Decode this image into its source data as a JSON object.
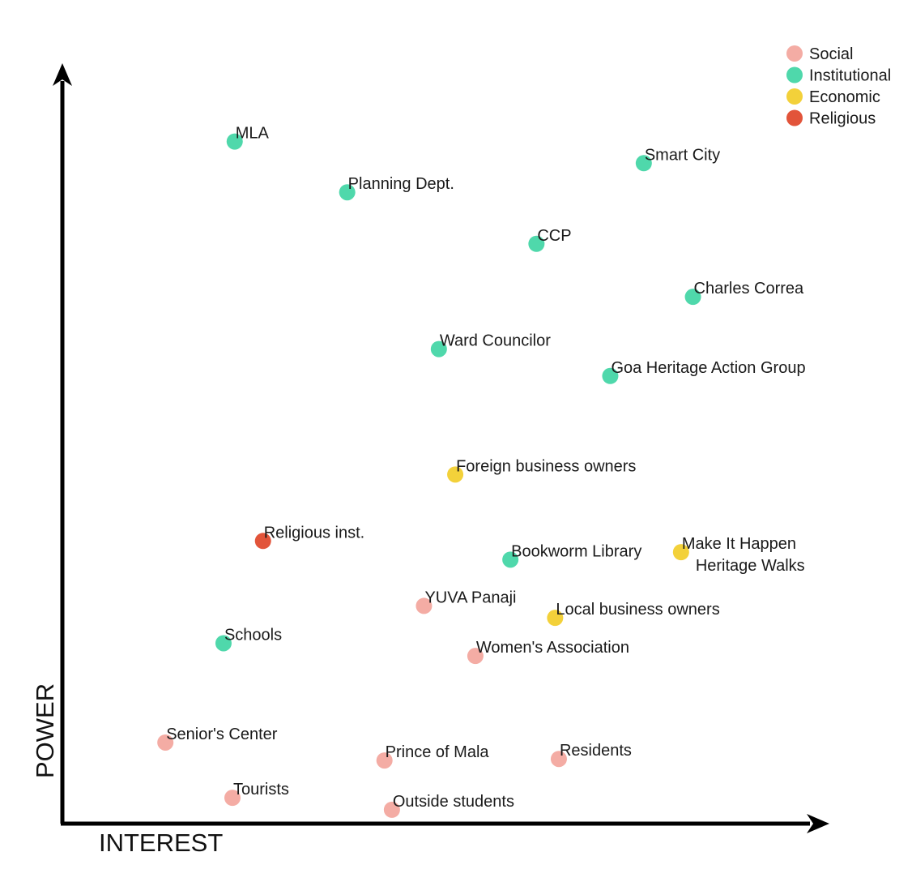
{
  "chart_data": {
    "type": "scatter",
    "title": "",
    "xlabel": "INTEREST",
    "ylabel": "POWER",
    "xlim": [
      0,
      100
    ],
    "ylim": [
      0,
      100
    ],
    "grid": false,
    "legend": {
      "position": "top-right",
      "entries": [
        {
          "category": "social",
          "label": "Social",
          "color": "#f4aca4"
        },
        {
          "category": "institutional",
          "label": "Institutional",
          "color": "#4fd8ab"
        },
        {
          "category": "economic",
          "label": "Economic",
          "color": "#f3d13a"
        },
        {
          "category": "religious",
          "label": "Religious",
          "color": "#e2543a"
        }
      ]
    },
    "points": [
      {
        "label": "MLA",
        "category": "institutional",
        "x": 22.8,
        "y": 90.6
      },
      {
        "label": "Smart City",
        "category": "institutional",
        "x": 77.7,
        "y": 87.7
      },
      {
        "label": "Planning Dept.",
        "category": "institutional",
        "x": 37.9,
        "y": 83.8
      },
      {
        "label": "CCP",
        "category": "institutional",
        "x": 63.3,
        "y": 76.9
      },
      {
        "label": "Charles Correa",
        "category": "institutional",
        "x": 84.3,
        "y": 69.8
      },
      {
        "label": "Ward Councilor",
        "category": "institutional",
        "x": 50.2,
        "y": 62.8
      },
      {
        "label": "Goa Heritage Action Group",
        "category": "institutional",
        "x": 73.2,
        "y": 59.2
      },
      {
        "label": "Foreign business owners",
        "category": "economic",
        "x": 52.4,
        "y": 46.0
      },
      {
        "label": "Religious inst.",
        "category": "religious",
        "x": 26.6,
        "y": 37.1
      },
      {
        "label": "Make It Happen\nHeritage Walks",
        "category": "economic",
        "x": 82.7,
        "y": 35.6
      },
      {
        "label": "Bookworm Library",
        "category": "institutional",
        "x": 59.8,
        "y": 34.6
      },
      {
        "label": "YUVA Panaji",
        "category": "social",
        "x": 48.2,
        "y": 28.4
      },
      {
        "label": "Local business owners",
        "category": "economic",
        "x": 65.8,
        "y": 26.8
      },
      {
        "label": "Schools",
        "category": "institutional",
        "x": 21.3,
        "y": 23.4
      },
      {
        "label": "Women's Association",
        "category": "social",
        "x": 55.1,
        "y": 21.7
      },
      {
        "label": "Senior's Center",
        "category": "social",
        "x": 13.5,
        "y": 10.1
      },
      {
        "label": "Prince of Mala",
        "category": "social",
        "x": 42.9,
        "y": 7.7
      },
      {
        "label": "Residents",
        "category": "social",
        "x": 66.3,
        "y": 7.9
      },
      {
        "label": "Tourists",
        "category": "social",
        "x": 22.5,
        "y": 2.7
      },
      {
        "label": "Outside students",
        "category": "social",
        "x": 43.9,
        "y": 1.1
      }
    ]
  }
}
